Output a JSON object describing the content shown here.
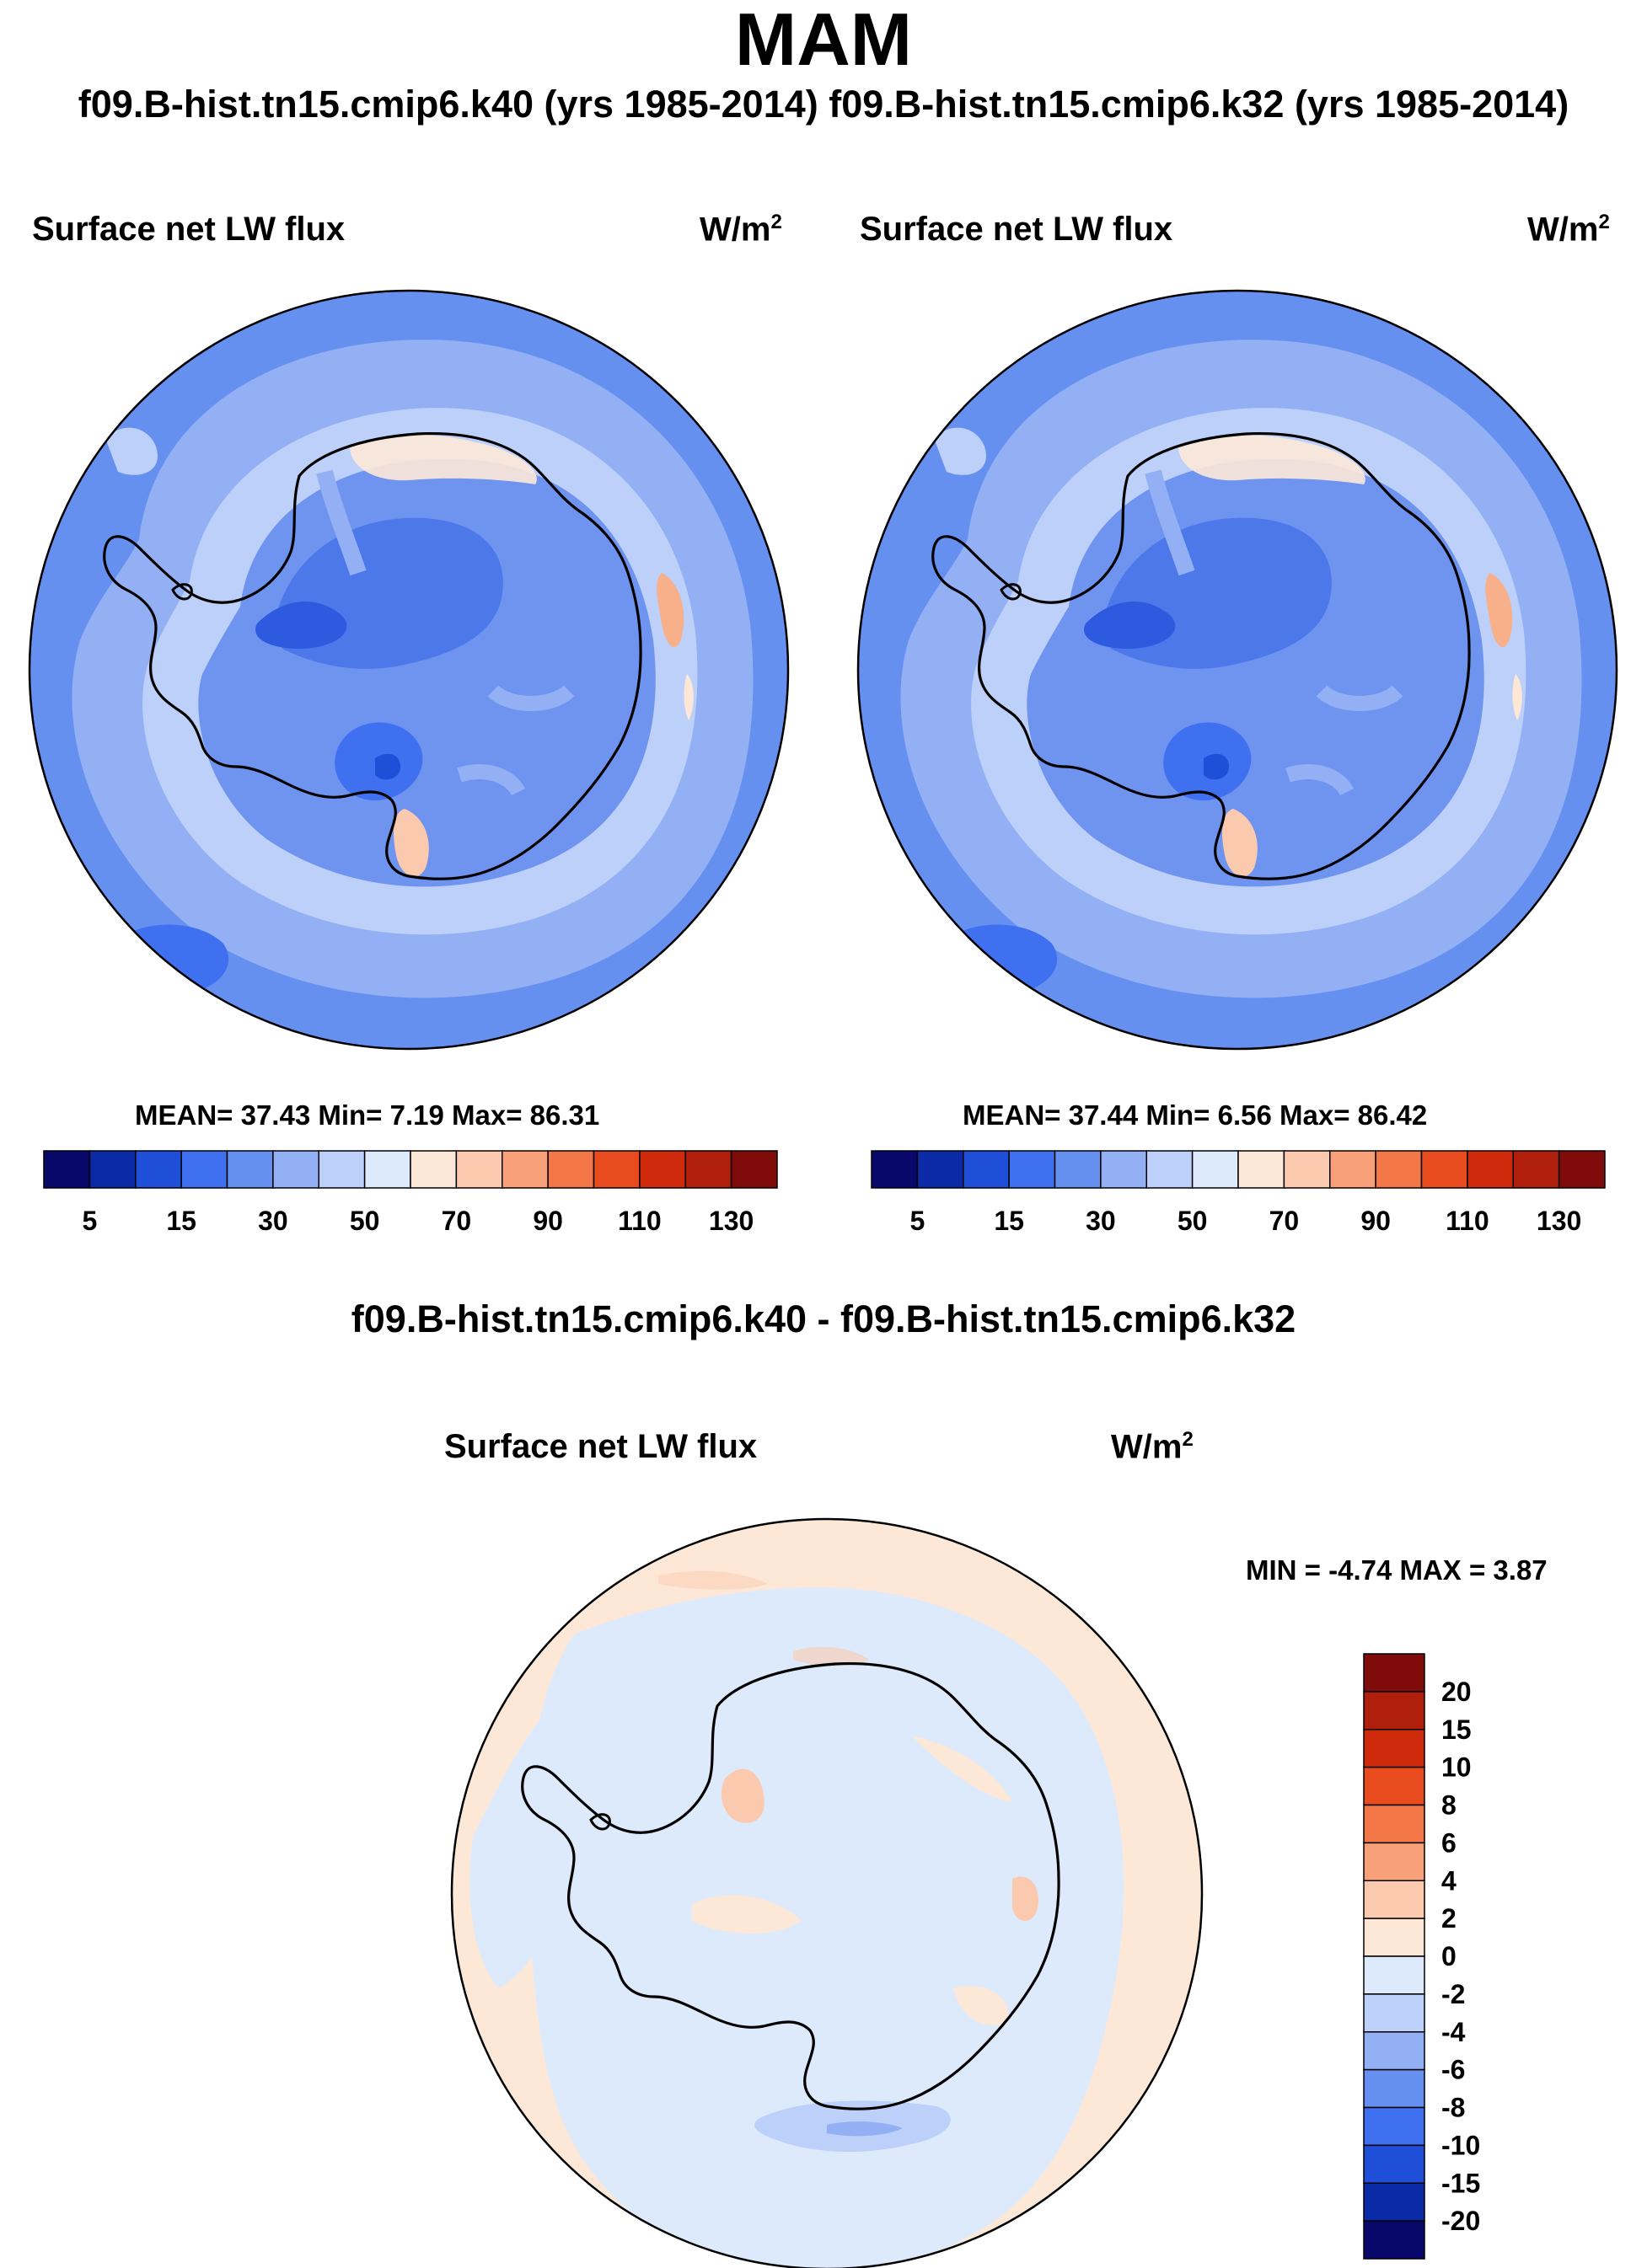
{
  "title": "MAM",
  "subtitle": "f09.B-hist.tn15.cmip6.k40 (yrs 1985-2014) f09.B-hist.tn15.cmip6.k32 (yrs 1985-2014)",
  "panels": [
    {
      "variable": "Surface net LW flux",
      "units_base": "W/m",
      "units_exp": "2",
      "stats": "MEAN=  37.43  Min=   7.19  Max=  86.31"
    },
    {
      "variable": "Surface net LW flux",
      "units_base": "W/m",
      "units_exp": "2",
      "stats": "MEAN=  37.44  Min=   6.56  Max=  86.42"
    }
  ],
  "diff": {
    "title": "f09.B-hist.tn15.cmip6.k40 - f09.B-hist.tn15.cmip6.k32",
    "variable": "Surface net LW flux",
    "units_base": "W/m",
    "units_exp": "2",
    "stats": "MIN =  -4.74 MAX =   3.87"
  },
  "colorbar_abs": {
    "colors": [
      "#08086b",
      "#0a2aa8",
      "#1f4ed8",
      "#3f70f0",
      "#6690f0",
      "#93b0f5",
      "#bcd0fa",
      "#dceafc",
      "#fde8d8",
      "#fbc9ad",
      "#f7a07a",
      "#f47748",
      "#e84c1e",
      "#d02a0d",
      "#b01e0c",
      "#7f0b0b"
    ],
    "tick_labels": [
      "5",
      "15",
      "30",
      "50",
      "70",
      "90",
      "110",
      "130"
    ]
  },
  "colorbar_diff": {
    "colors_top_to_bottom": [
      "#7f0b0b",
      "#b01e0c",
      "#d02a0d",
      "#e84c1e",
      "#f47748",
      "#f7a07a",
      "#fbc9ad",
      "#fde8d8",
      "#dceafc",
      "#bcd0fa",
      "#93b0f5",
      "#6690f0",
      "#3f70f0",
      "#1f4ed8",
      "#0a2aa8",
      "#08086b"
    ],
    "tick_labels": [
      "20",
      "15",
      "10",
      "8",
      "6",
      "4",
      "2",
      "0",
      "-2",
      "-4",
      "-6",
      "-8",
      "-10",
      "-15",
      "-20"
    ]
  }
}
